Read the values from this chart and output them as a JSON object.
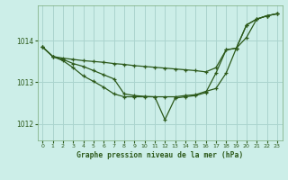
{
  "title": "Graphe pression niveau de la mer (hPa)",
  "background_color": "#cceee8",
  "grid_color": "#aad4ce",
  "line_color": "#2d5a1b",
  "xlim": [
    -0.5,
    23.5
  ],
  "ylim": [
    1011.6,
    1014.85
  ],
  "yticks": [
    1012,
    1013,
    1014
  ],
  "xticks": [
    0,
    1,
    2,
    3,
    4,
    5,
    6,
    7,
    8,
    9,
    10,
    11,
    12,
    13,
    14,
    15,
    16,
    17,
    18,
    19,
    20,
    21,
    22,
    23
  ],
  "series1_x": [
    0,
    1,
    2,
    3,
    4,
    5,
    6,
    7,
    8,
    9,
    10,
    11,
    12,
    13,
    14,
    15,
    16,
    17,
    18,
    19,
    20,
    21,
    22,
    23
  ],
  "series1_y": [
    1013.85,
    1013.62,
    1013.58,
    1013.55,
    1013.52,
    1013.5,
    1013.48,
    1013.45,
    1013.43,
    1013.4,
    1013.38,
    1013.36,
    1013.34,
    1013.32,
    1013.3,
    1013.28,
    1013.25,
    1013.35,
    1013.78,
    1013.82,
    1014.38,
    1014.52,
    1014.6,
    1014.65
  ],
  "series2_x": [
    0,
    1,
    2,
    3,
    4,
    5,
    6,
    7,
    8,
    9,
    10,
    11,
    12,
    13,
    14,
    15,
    16,
    17,
    18,
    19,
    20,
    21,
    22,
    23
  ],
  "series2_y": [
    1013.85,
    1013.62,
    1013.55,
    1013.45,
    1013.38,
    1013.28,
    1013.18,
    1013.08,
    1012.72,
    1012.68,
    1012.66,
    1012.65,
    1012.65,
    1012.65,
    1012.68,
    1012.7,
    1012.78,
    1012.85,
    1013.22,
    1013.82,
    1014.08,
    1014.52,
    1014.6,
    1014.65
  ],
  "series3_x": [
    0,
    1,
    2,
    3,
    4,
    5,
    6,
    7,
    8,
    9,
    10,
    11,
    12,
    13,
    14,
    15,
    16,
    17,
    18,
    19,
    20,
    21,
    22,
    23
  ],
  "series3_y": [
    1013.85,
    1013.62,
    1013.52,
    1013.35,
    1013.15,
    1013.02,
    1012.88,
    1012.72,
    1012.65,
    1012.65,
    1012.65,
    1012.65,
    1012.1,
    1012.62,
    1012.65,
    1012.68,
    1012.75,
    1013.22,
    1013.78,
    1013.82,
    1014.38,
    1014.52,
    1014.6,
    1014.65
  ]
}
